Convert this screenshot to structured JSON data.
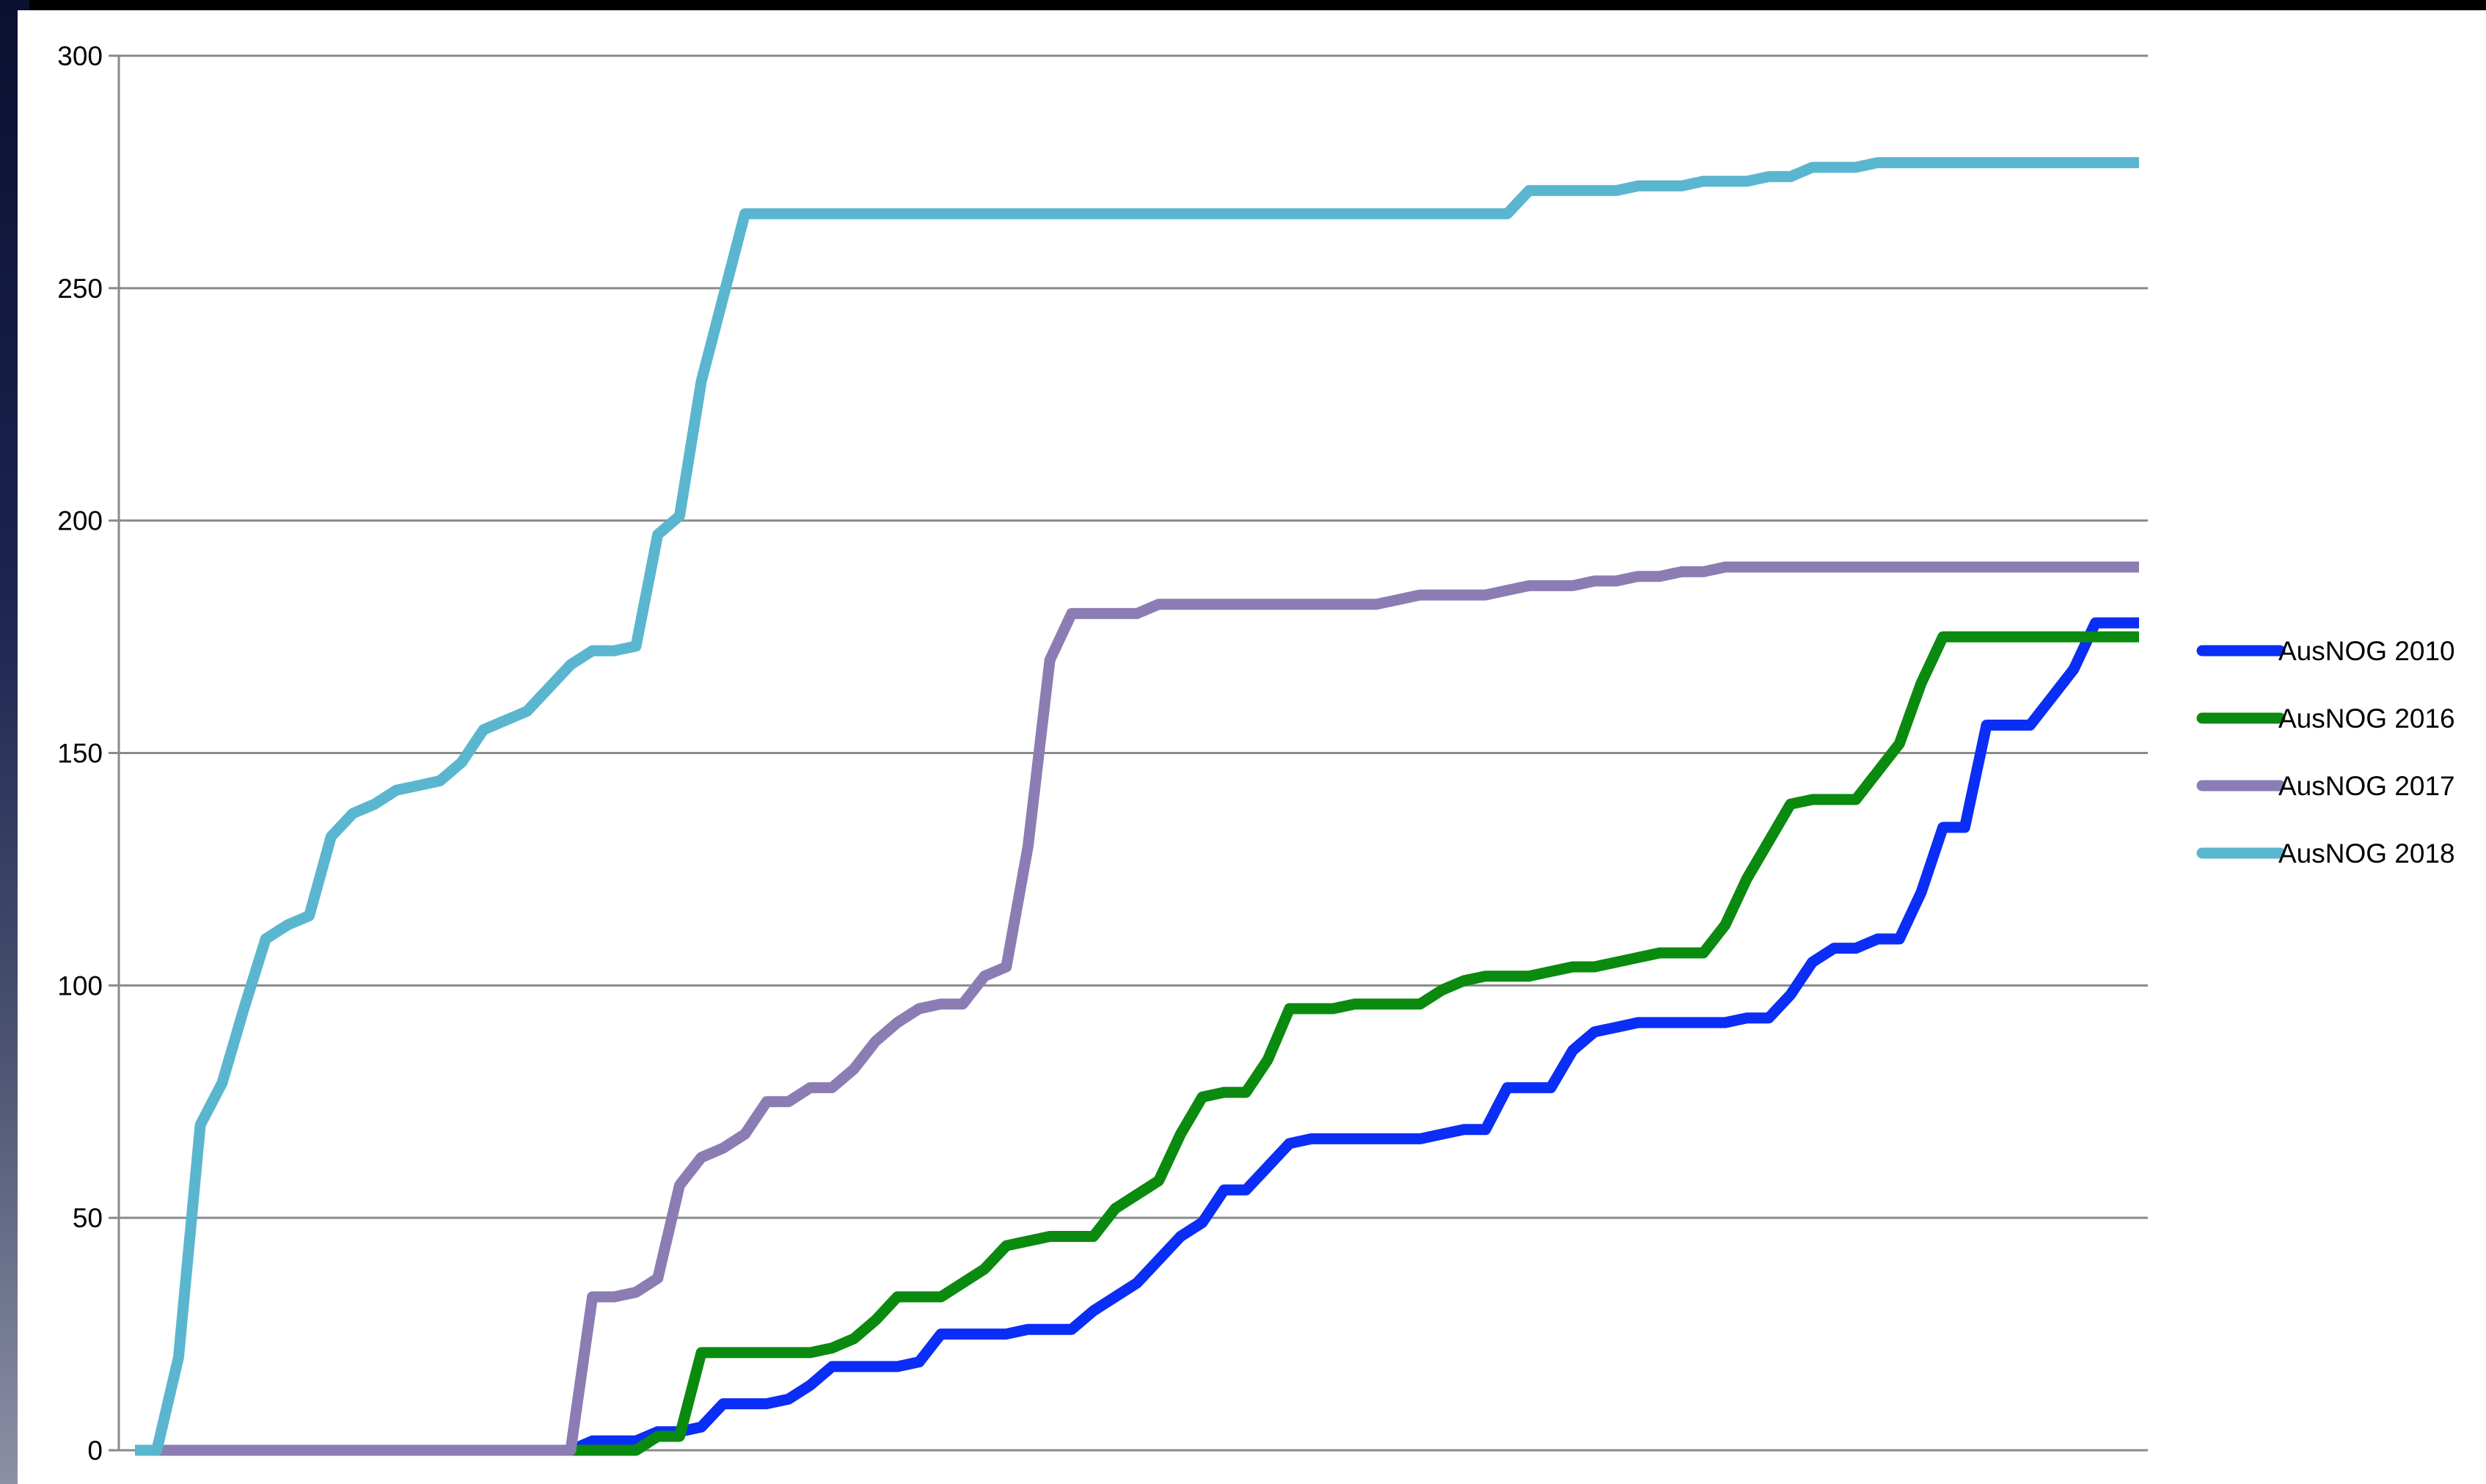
{
  "chart_data": {
    "type": "line",
    "title": "",
    "xlabel": "",
    "ylabel": "",
    "ylim": [
      0,
      300
    ],
    "yticks": [
      0,
      50,
      100,
      150,
      200,
      250,
      300
    ],
    "grid": true,
    "legend_position": "right",
    "x": [
      0,
      1,
      2,
      3,
      4,
      5,
      6,
      7,
      8,
      9,
      10,
      11,
      12,
      13,
      14,
      15,
      16,
      17,
      18,
      19,
      20,
      21,
      22,
      23,
      24,
      25,
      26,
      27,
      28,
      29,
      30,
      31,
      32,
      33,
      34,
      35,
      36,
      37,
      38,
      39,
      40,
      41,
      42,
      43,
      44,
      45,
      46,
      47,
      48,
      49,
      50,
      51,
      52,
      53,
      54,
      55,
      56,
      57,
      58,
      59,
      60,
      61,
      62,
      63,
      64,
      65,
      66,
      67,
      68,
      69,
      70,
      71,
      72,
      73,
      74,
      75,
      76,
      77,
      78,
      79,
      80,
      81,
      82,
      83,
      84,
      85,
      86,
      87,
      88,
      89,
      90,
      91,
      92
    ],
    "series": [
      {
        "name": "AusNOG 2010",
        "color": "#0a2ef5",
        "values": [
          null,
          null,
          null,
          null,
          null,
          null,
          null,
          null,
          null,
          null,
          null,
          null,
          null,
          null,
          null,
          null,
          null,
          null,
          null,
          null,
          0,
          2,
          2,
          2,
          4,
          4,
          5,
          10,
          10,
          10,
          11,
          14,
          18,
          18,
          18,
          18,
          19,
          25,
          25,
          25,
          25,
          26,
          26,
          26,
          30,
          33,
          36,
          41,
          46,
          49,
          56,
          56,
          61,
          66,
          67,
          67,
          67,
          67,
          67,
          67,
          68,
          69,
          69,
          78,
          78,
          78,
          86,
          90,
          91,
          92,
          92,
          92,
          92,
          92,
          93,
          93,
          98,
          105,
          108,
          108,
          110,
          110,
          120,
          134,
          134,
          156,
          156,
          156,
          162,
          168,
          178,
          178,
          178
        ]
      },
      {
        "name": "AusNOG 2016",
        "color": "#0a8a0e",
        "values": [
          null,
          null,
          null,
          null,
          null,
          null,
          null,
          null,
          null,
          null,
          null,
          null,
          null,
          null,
          null,
          null,
          null,
          null,
          null,
          null,
          0,
          0,
          0,
          0,
          3,
          3,
          21,
          21,
          21,
          21,
          21,
          21,
          22,
          24,
          28,
          33,
          33,
          33,
          36,
          39,
          44,
          45,
          46,
          46,
          46,
          52,
          55,
          58,
          68,
          76,
          77,
          77,
          84,
          95,
          95,
          95,
          96,
          96,
          96,
          96,
          99,
          101,
          102,
          102,
          102,
          103,
          104,
          104,
          105,
          106,
          107,
          107,
          107,
          113,
          123,
          131,
          139,
          140,
          140,
          140,
          146,
          152,
          165,
          175,
          175,
          175,
          175,
          175,
          175,
          175,
          175,
          175,
          175
        ]
      },
      {
        "name": "AusNOG 2017",
        "color": "#8b7db3",
        "values": [
          null,
          0,
          0,
          0,
          0,
          0,
          0,
          0,
          0,
          0,
          0,
          0,
          0,
          0,
          0,
          0,
          0,
          0,
          0,
          0,
          0,
          33,
          33,
          34,
          37,
          57,
          63,
          65,
          68,
          75,
          75,
          78,
          78,
          82,
          88,
          92,
          95,
          96,
          96,
          102,
          104,
          130,
          170,
          180,
          180,
          180,
          180,
          182,
          182,
          182,
          182,
          182,
          182,
          182,
          182,
          182,
          182,
          182,
          183,
          184,
          184,
          184,
          184,
          185,
          186,
          186,
          186,
          187,
          187,
          188,
          188,
          189,
          189,
          190,
          190,
          190,
          190,
          190,
          190,
          190,
          190,
          190,
          190,
          190,
          190,
          190,
          190,
          190,
          190,
          190,
          190,
          190,
          190
        ]
      },
      {
        "name": "AusNOG 2018",
        "color": "#5ab6cf",
        "values": [
          0,
          0,
          20,
          70,
          79,
          95,
          110,
          113,
          115,
          132,
          137,
          139,
          142,
          143,
          144,
          148,
          155,
          157,
          159,
          164,
          169,
          172,
          172,
          173,
          197,
          201,
          230,
          248,
          266,
          266,
          266,
          266,
          266,
          266,
          266,
          266,
          266,
          266,
          266,
          266,
          266,
          266,
          266,
          266,
          266,
          266,
          266,
          266,
          266,
          266,
          266,
          266,
          266,
          266,
          266,
          266,
          266,
          266,
          266,
          266,
          266,
          266,
          266,
          266,
          271,
          271,
          271,
          271,
          271,
          272,
          272,
          272,
          273,
          273,
          273,
          274,
          274,
          276,
          276,
          276,
          277,
          277,
          277,
          277,
          277,
          277,
          277,
          277,
          277,
          277,
          277,
          277,
          277
        ]
      }
    ]
  }
}
